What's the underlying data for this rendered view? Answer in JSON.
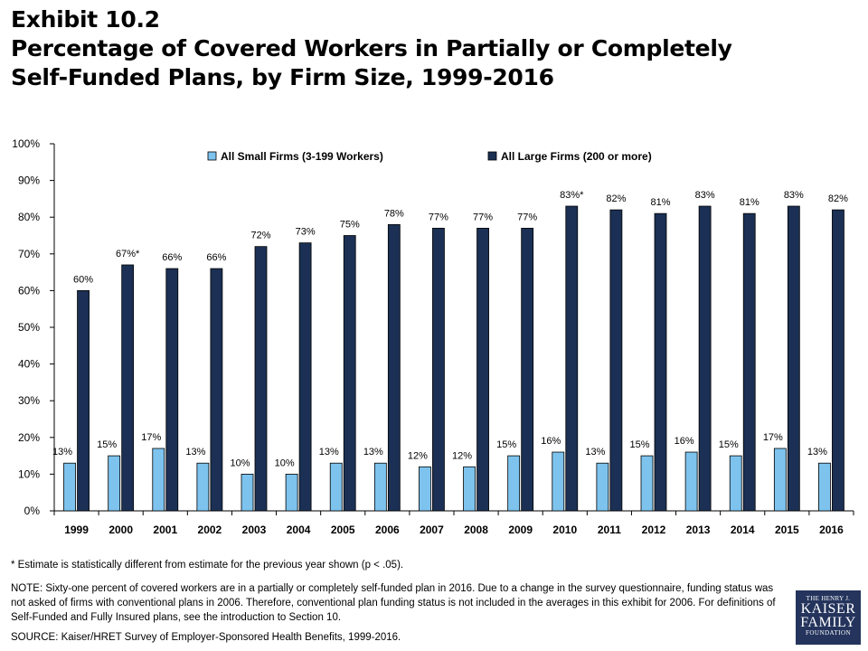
{
  "header": {
    "title_lines": [
      "Exhibit 10.2",
      "Percentage of Covered Workers in Partially or Completely",
      "Self-Funded Plans, by Firm Size, 1999-2016"
    ]
  },
  "chart_data": {
    "type": "bar",
    "categories": [
      "1999",
      "2000",
      "2001",
      "2002",
      "2003",
      "2004",
      "2005",
      "2006",
      "2007",
      "2008",
      "2009",
      "2010",
      "2011",
      "2012",
      "2013",
      "2014",
      "2015",
      "2016"
    ],
    "series": [
      {
        "name": "All Small Firms (3-199 Workers)",
        "color": "#7dc3ee",
        "values": [
          13,
          15,
          17,
          13,
          10,
          10,
          13,
          13,
          12,
          12,
          15,
          16,
          13,
          15,
          16,
          15,
          17,
          13
        ],
        "labels": [
          "13%",
          "15%",
          "17%",
          "13%",
          "10%",
          "10%",
          "13%",
          "13%",
          "12%",
          "12%",
          "15%",
          "16%",
          "13%",
          "15%",
          "16%",
          "15%",
          "17%",
          "13%"
        ]
      },
      {
        "name": "All Large Firms (200 or more)",
        "color": "#1b3054",
        "values": [
          60,
          67,
          66,
          66,
          72,
          73,
          75,
          78,
          77,
          77,
          77,
          83,
          82,
          81,
          83,
          81,
          83,
          82
        ],
        "labels": [
          "60%",
          "67%*",
          "66%",
          "66%",
          "72%",
          "73%",
          "75%",
          "78%",
          "77%",
          "77%",
          "77%",
          "83%*",
          "82%",
          "81%",
          "83%",
          "81%",
          "83%",
          "82%"
        ]
      }
    ],
    "ylim": [
      0,
      100
    ],
    "yticks": [
      0,
      10,
      20,
      30,
      40,
      50,
      60,
      70,
      80,
      90,
      100
    ],
    "ytick_labels": [
      "0%",
      "10%",
      "20%",
      "30%",
      "40%",
      "50%",
      "60%",
      "70%",
      "80%",
      "90%",
      "100%"
    ],
    "legend_position": "top",
    "grid": false
  },
  "footnotes": {
    "asterisk": "* Estimate is statistically different from estimate for the previous year shown (p < .05).",
    "note": "NOTE:  Sixty-one percent of covered workers are in a partially or completely self-funded plan in 2016. Due to a change in the survey questionnaire, funding status was not asked of firms with conventional plans in 2006.  Therefore, conventional plan funding status is not included in the averages in this exhibit for 2006.  For definitions of Self-Funded and Fully Insured plans, see the introduction to Section 10.",
    "source": "SOURCE:  Kaiser/HRET Survey of Employer-Sponsored Health Benefits, 1999-2016."
  },
  "logo": {
    "line1": "THE HENRY J.",
    "line2": "KAISER",
    "line3": "FAMILY",
    "line4": "FOUNDATION"
  }
}
